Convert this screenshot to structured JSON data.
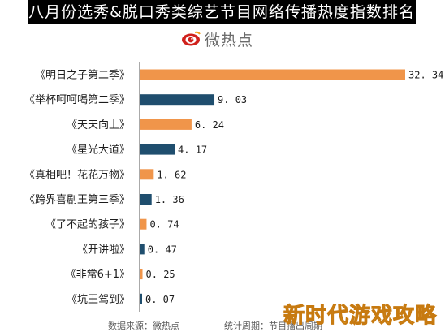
{
  "chart_data": {
    "type": "bar",
    "orientation": "horizontal",
    "title": "八月份选秀&脱口秀类综艺节目网络传播热度指数排名",
    "categories": [
      "《明日之子第二季》",
      "《举杯呵呵喝第二季》",
      "《天天向上》",
      "《星光大道》",
      "《真相吧！花花万物》",
      "《跨界喜剧王第三季》",
      "《了不起的孩子》",
      "《开讲啦》",
      "《非常6+1》",
      "《坑王驾到》"
    ],
    "values": [
      32.34,
      9.03,
      6.24,
      4.17,
      1.62,
      1.36,
      0.74,
      0.47,
      0.25,
      0.07
    ],
    "value_labels": [
      "32. 34",
      "9. 03",
      "6. 24",
      "4. 17",
      "1. 62",
      "1. 36",
      "0. 74",
      "0. 47",
      "0. 25",
      "0. 07"
    ],
    "bar_colors": [
      "#F0954A",
      "#1F4E6E",
      "#F0954A",
      "#1F4E6E",
      "#F0954A",
      "#1F4E6E",
      "#F0954A",
      "#1F4E6E",
      "#F0954A",
      "#1F4E6E"
    ],
    "xlim": [
      0,
      32.34
    ],
    "xlabel": "",
    "ylabel": "",
    "grid": false,
    "legend": "none"
  },
  "header": {
    "logo_text": "微热点"
  },
  "footer": {
    "source": "数据来源：微热点",
    "period": "统计周期：节目播出周期"
  },
  "watermark": "新时代游戏攻略",
  "colors": {
    "orange": "#F0954A",
    "navy": "#1F4E6E",
    "title_bg": "#000000",
    "axis": "#555555"
  }
}
